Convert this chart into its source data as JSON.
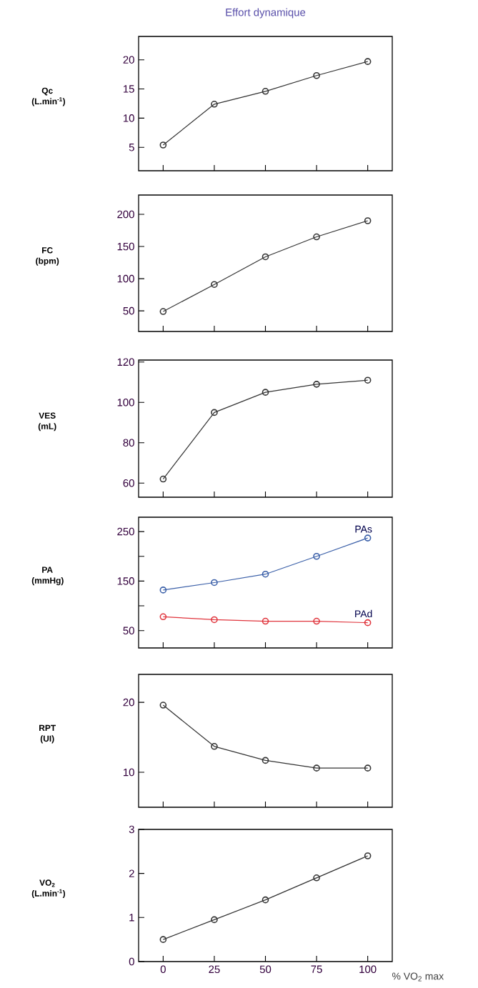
{
  "chart_data": [
    {
      "type": "line",
      "title": "Effort dynamique",
      "ylabel": "Qc (L.min$^{-1}$)",
      "x": [
        0,
        25,
        50,
        75,
        100
      ],
      "values": [
        5.4,
        12.4,
        14.6,
        17.3,
        19.7
      ],
      "color": "#333333",
      "marker": "circle",
      "xlim": [
        -12,
        112
      ],
      "xticks": [
        0,
        25,
        50,
        75,
        100
      ],
      "ylim": [
        1,
        24
      ],
      "yticks": [
        5,
        10,
        15,
        20
      ],
      "tick_labels": "y"
    },
    {
      "type": "line",
      "ylabel": "FC (bpm)",
      "x": [
        0,
        25,
        50,
        75,
        100
      ],
      "values": [
        49,
        91,
        134,
        165,
        190
      ],
      "color": "#333333",
      "marker": "circle",
      "xlim": [
        -12,
        112
      ],
      "xticks": [
        0,
        25,
        50,
        75,
        100
      ],
      "ylim": [
        18,
        230
      ],
      "yticks": [
        50,
        100,
        150,
        200
      ],
      "tick_labels": "y"
    },
    {
      "type": "line",
      "ylabel": "VES (mL)",
      "x": [
        0,
        25,
        50,
        75,
        100
      ],
      "values": [
        62,
        95,
        105,
        109,
        111
      ],
      "color": "#333333",
      "marker": "circle",
      "xlim": [
        -12,
        112
      ],
      "xticks": [
        0,
        25,
        50,
        75,
        100
      ],
      "ylim": [
        53,
        121
      ],
      "yticks": [
        60,
        80,
        100,
        120
      ],
      "tick_labels": "y"
    },
    {
      "type": "line",
      "ylabel": "PA (mmHg)",
      "x": [
        0,
        25,
        50,
        75,
        100
      ],
      "series": [
        {
          "name": "PAs",
          "color": "#3a5fa8",
          "values": [
            132,
            147,
            164,
            200,
            237
          ]
        },
        {
          "name": "PAd",
          "color": "#e0343c",
          "values": [
            78,
            72,
            69,
            69,
            66
          ]
        }
      ],
      "marker": "circle",
      "xlim": [
        -12,
        112
      ],
      "xticks": [
        0,
        25,
        50,
        75,
        100
      ],
      "ylim": [
        15,
        279
      ],
      "yticks": [
        50,
        {
          "value": 100,
          "label": null
        },
        150,
        {
          "value": 200,
          "label": null
        },
        250
      ],
      "tick_labels": "y"
    },
    {
      "type": "line",
      "ylabel": "RPT (UI)",
      "x": [
        0,
        25,
        50,
        75,
        100
      ],
      "values": [
        19.6,
        13.7,
        11.7,
        10.6,
        10.6
      ],
      "color": "#333333",
      "marker": "circle",
      "xlim": [
        -12,
        112
      ],
      "xticks": [
        0,
        25,
        50,
        75,
        100
      ],
      "ylim": [
        5,
        24
      ],
      "yticks": [
        10,
        20
      ],
      "tick_labels": "y"
    },
    {
      "type": "line",
      "ylabel": "VO$_{2}$ (L.min$^{-1}$)",
      "xlabel": "% VO$_{2}$ max",
      "x": [
        0,
        25,
        50,
        75,
        100
      ],
      "values": [
        0.5,
        0.95,
        1.4,
        1.9,
        2.4
      ],
      "color": "#333333",
      "marker": "circle",
      "xlim": [
        -12,
        112
      ],
      "xticks": [
        0,
        25,
        50,
        75,
        100
      ],
      "ylim": [
        0,
        3
      ],
      "yticks": [
        0,
        1,
        2,
        3
      ]
    }
  ]
}
